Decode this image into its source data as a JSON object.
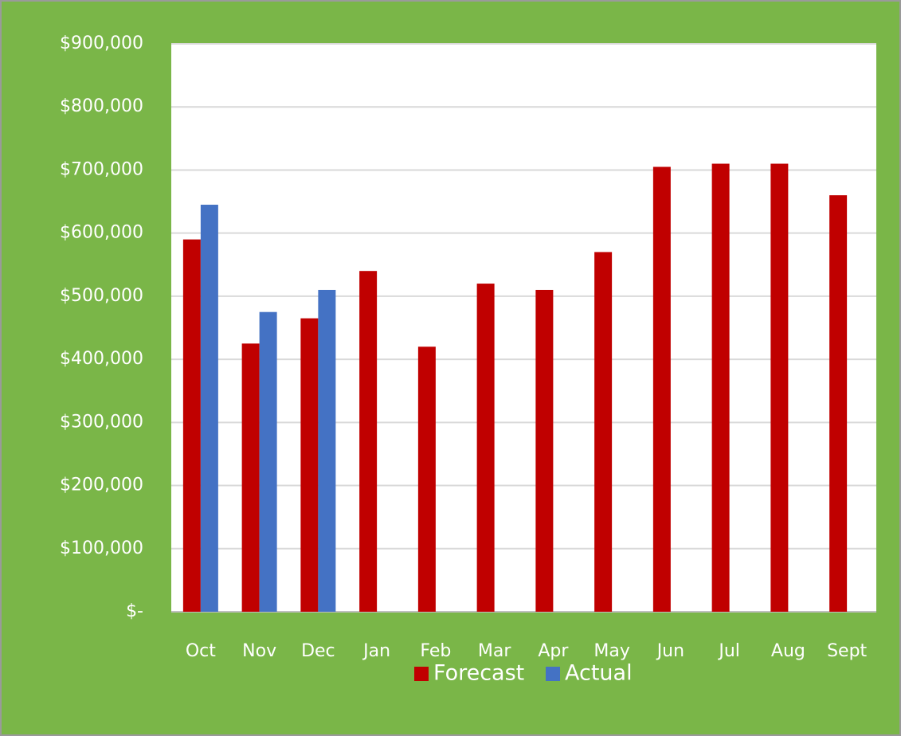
{
  "chart_data": {
    "type": "bar",
    "categories": [
      "Oct",
      "Nov",
      "Dec",
      "Jan",
      "Feb",
      "Mar",
      "Apr",
      "May",
      "Jun",
      "Jul",
      "Aug",
      "Sept"
    ],
    "series": [
      {
        "name": "Forecast",
        "color": "#c00000",
        "values": [
          590000,
          425000,
          465000,
          540000,
          420000,
          520000,
          510000,
          570000,
          705000,
          710000,
          710000,
          660000
        ]
      },
      {
        "name": "Actual",
        "color": "#4472c4",
        "values": [
          645000,
          475000,
          510000,
          null,
          null,
          null,
          null,
          null,
          null,
          null,
          null,
          null
        ]
      }
    ],
    "ylim": [
      0,
      900000
    ],
    "yticks": [
      {
        "value": 0,
        "label": "$-"
      },
      {
        "value": 100000,
        "label": "$100,000"
      },
      {
        "value": 200000,
        "label": "$200,000"
      },
      {
        "value": 300000,
        "label": "$300,000"
      },
      {
        "value": 400000,
        "label": "$400,000"
      },
      {
        "value": 500000,
        "label": "$500,000"
      },
      {
        "value": 600000,
        "label": "$600,000"
      },
      {
        "value": 700000,
        "label": "$700,000"
      },
      {
        "value": 800000,
        "label": "$800,000"
      },
      {
        "value": 900000,
        "label": "$900,000"
      }
    ],
    "grid": true,
    "legend": "bottom"
  }
}
